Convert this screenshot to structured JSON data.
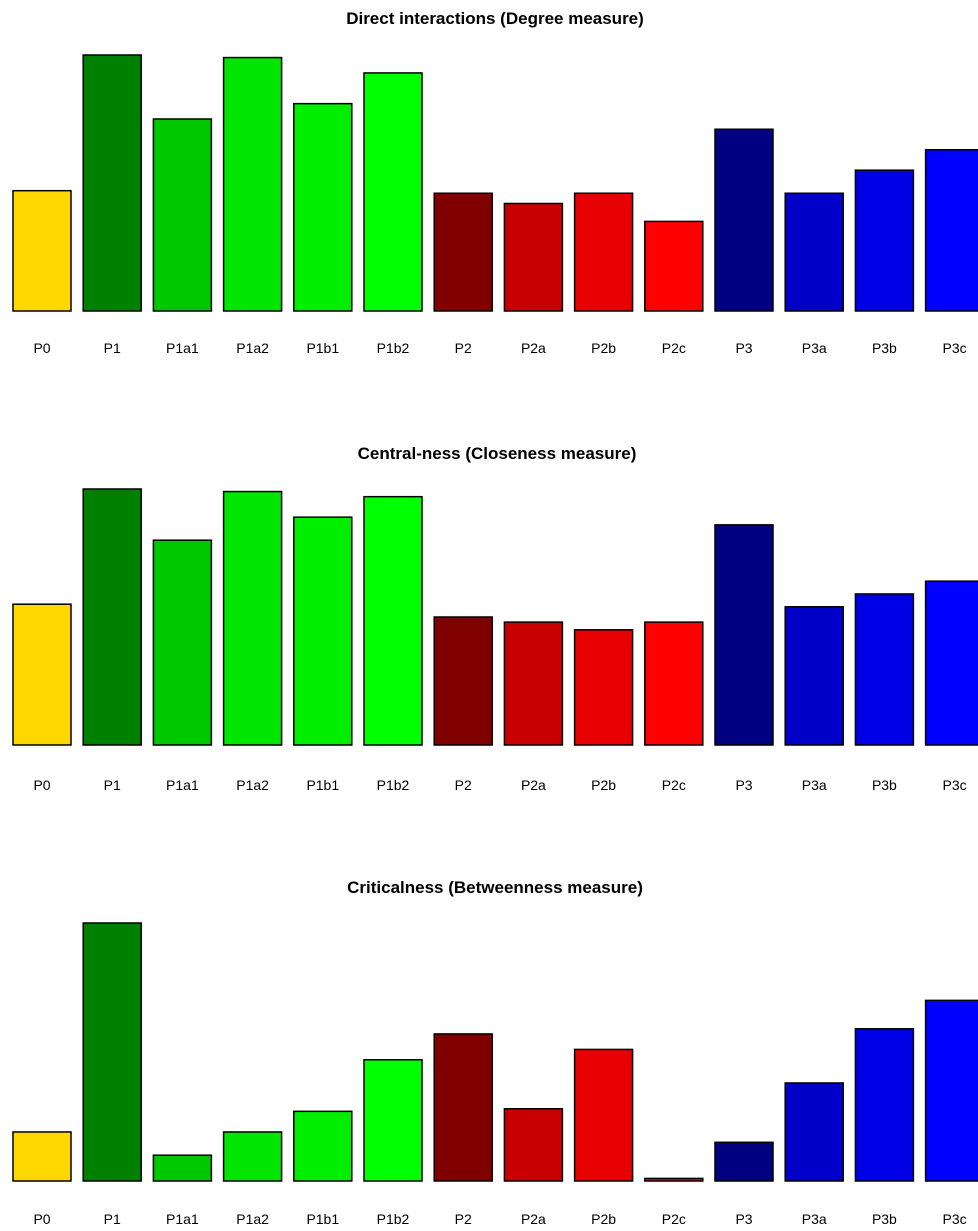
{
  "chart_data": [
    {
      "type": "bar",
      "title": "Direct interactions (Degree measure)",
      "categories": [
        "P0",
        "P1",
        "P1a1",
        "P1a2",
        "P1b1",
        "P1b2",
        "P2",
        "P2a",
        "P2b",
        "P2c",
        "P3",
        "P3a",
        "P3b",
        "P3c"
      ],
      "values": [
        0.47,
        1.0,
        0.75,
        0.99,
        0.81,
        0.93,
        0.46,
        0.42,
        0.46,
        0.35,
        0.71,
        0.46,
        0.55,
        0.63
      ],
      "colors": [
        "#FFD700",
        "#008000",
        "#00C800",
        "#00E600",
        "#00EE00",
        "#00FF00",
        "#800000",
        "#C80000",
        "#E60000",
        "#FF0000",
        "#000080",
        "#0000C8",
        "#0000E6",
        "#0000FF"
      ],
      "xlabel": "",
      "ylabel": "",
      "ylim": [
        0,
        1.0
      ],
      "grid": false,
      "legend": "none"
    },
    {
      "type": "bar",
      "title": "Central-ness (Closeness measure)",
      "categories": [
        "P0",
        "P1",
        "P1a1",
        "P1a2",
        "P1b1",
        "P1b2",
        "P2",
        "P2a",
        "P2b",
        "P2c",
        "P3",
        "P3a",
        "P3b",
        "P3c"
      ],
      "values": [
        0.55,
        1.0,
        0.8,
        0.99,
        0.89,
        0.97,
        0.5,
        0.48,
        0.45,
        0.48,
        0.86,
        0.54,
        0.59,
        0.64
      ],
      "colors": [
        "#FFD700",
        "#008000",
        "#00C800",
        "#00E600",
        "#00EE00",
        "#00FF00",
        "#800000",
        "#C80000",
        "#E60000",
        "#FF0000",
        "#000080",
        "#0000C8",
        "#0000E6",
        "#0000FF"
      ],
      "xlabel": "",
      "ylabel": "",
      "ylim": [
        0,
        1.0
      ],
      "grid": false,
      "legend": "none"
    },
    {
      "type": "bar",
      "title": "Criticalness (Betweenness measure)",
      "categories": [
        "P0",
        "P1",
        "P1a1",
        "P1a2",
        "P1b1",
        "P1b2",
        "P2",
        "P2a",
        "P2b",
        "P2c",
        "P3",
        "P3a",
        "P3b",
        "P3c"
      ],
      "values": [
        0.19,
        1.0,
        0.1,
        0.19,
        0.27,
        0.47,
        0.57,
        0.28,
        0.51,
        0.01,
        0.15,
        0.38,
        0.59,
        0.7
      ],
      "colors": [
        "#FFD700",
        "#008000",
        "#00C800",
        "#00E600",
        "#00EE00",
        "#00FF00",
        "#800000",
        "#C80000",
        "#E60000",
        "#FF0000",
        "#000080",
        "#0000C8",
        "#0000E6",
        "#0000FF"
      ],
      "xlabel": "",
      "ylabel": "",
      "ylim": [
        0,
        1.0
      ],
      "grid": false,
      "legend": "none"
    }
  ]
}
